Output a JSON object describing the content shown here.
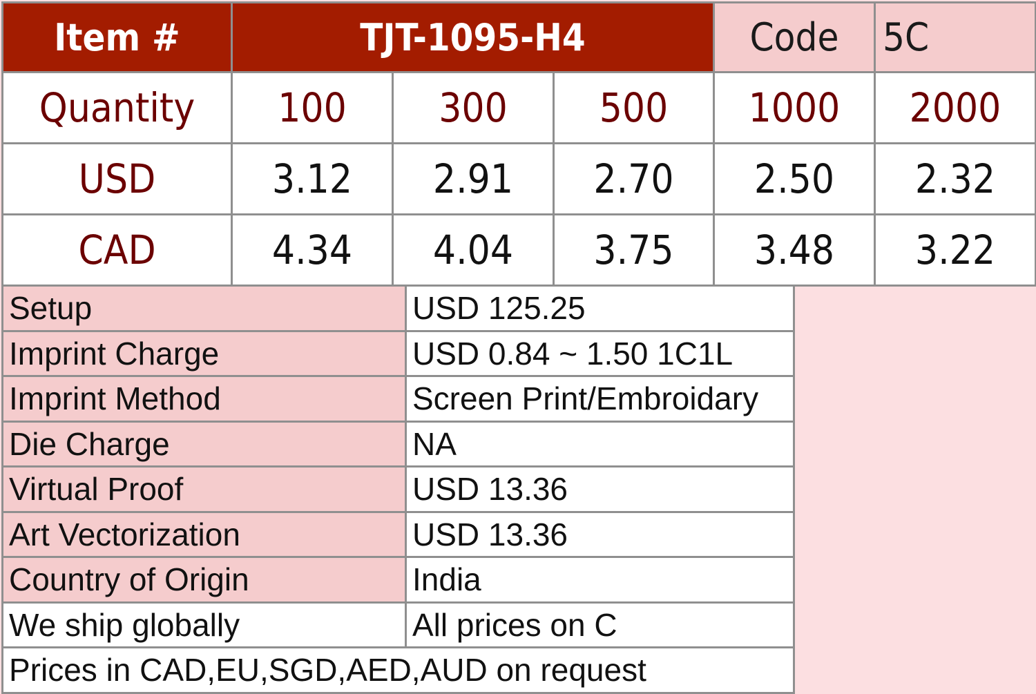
{
  "header": {
    "item_label": "Item #",
    "item_number": "TJT-1095-H4",
    "code_label": "Code",
    "code_value": "5C"
  },
  "pricing": {
    "quantity_label": "Quantity",
    "quantities": [
      "100",
      "300",
      "500",
      "1000",
      "2000"
    ],
    "rows": [
      {
        "currency": "USD",
        "prices": [
          "3.12",
          "2.91",
          "2.70",
          "2.50",
          "2.32"
        ]
      },
      {
        "currency": "CAD",
        "prices": [
          "4.34",
          "4.04",
          "3.75",
          "3.48",
          "3.22"
        ]
      }
    ]
  },
  "info": {
    "rows": [
      {
        "label": "Setup",
        "value": "USD 125.25"
      },
      {
        "label": "Imprint Charge",
        "value": "USD 0.84 ~ 1.50 1C1L"
      },
      {
        "label": "Imprint Method",
        "value": "Screen Print/Embroidary"
      },
      {
        "label": "Die Charge",
        "value": "NA"
      },
      {
        "label": "Virtual Proof",
        "value": "USD 13.36"
      },
      {
        "label": "Art Vectorization",
        "value": "USD 13.36"
      },
      {
        "label": "Country of Origin",
        "value": "India"
      },
      {
        "label": "We ship globally",
        "value": "All prices on C"
      }
    ],
    "footer": "Prices in CAD,EU,SGD,AED,AUD on request"
  }
}
